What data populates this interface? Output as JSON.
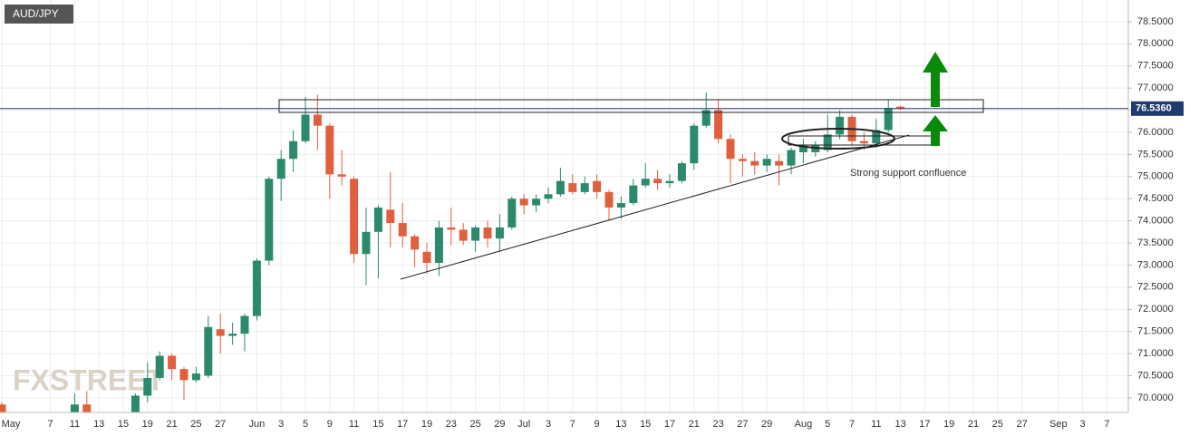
{
  "chart_data": {
    "type": "candlestick",
    "title": "AUD/JPY",
    "categories": [
      "May",
      null,
      null,
      null,
      "7",
      null,
      "11",
      null,
      "13",
      null,
      "15",
      null,
      "19",
      null,
      "21",
      null,
      "25",
      null,
      "27",
      null,
      null,
      "Jun",
      null,
      "3",
      null,
      "5",
      null,
      "9",
      null,
      "11",
      null,
      "15",
      null,
      "17",
      null,
      "19",
      null,
      "23",
      null,
      "25",
      null,
      "29",
      null,
      "Jul",
      null,
      "3",
      null,
      "7",
      null,
      "9",
      null,
      "13",
      null,
      "15",
      null,
      "17",
      null,
      "21",
      null,
      "23",
      null,
      "27",
      null,
      "29",
      null,
      null,
      "Aug",
      null,
      "5",
      null,
      "7",
      null,
      "11",
      null,
      "13",
      null,
      "17",
      null,
      "19",
      null,
      "21",
      null,
      "25",
      null,
      "27",
      null,
      null,
      "Sep",
      null,
      "3",
      null,
      "7"
    ],
    "open": [
      69.85,
      null,
      null,
      null,
      null,
      null,
      69.65,
      69.85,
      null,
      null,
      null,
      69.6,
      70.05,
      70.45,
      70.95,
      70.65,
      70.4,
      70.5,
      71.55,
      71.4,
      71.45,
      71.85,
      73.1,
      74.95,
      75.4,
      75.8,
      76.4,
      76.15,
      75.05,
      74.95,
      73.25,
      73.75,
      74.25,
      73.95,
      73.65,
      73.3,
      73.05,
      73.85,
      73.8,
      73.55,
      73.85,
      73.6,
      73.85,
      74.5,
      74.35,
      74.5,
      74.6,
      74.85,
      74.65,
      74.9,
      74.65,
      74.3,
      74.4,
      74.8,
      74.95,
      74.85,
      74.9,
      75.3,
      76.15,
      76.5,
      75.85,
      75.4,
      75.35,
      75.25,
      75.35,
      75.25,
      75.55,
      75.55,
      75.6,
      75.95,
      76.35,
      75.8,
      75.75,
      76.05,
      76.58,
      null,
      null,
      null,
      null,
      null,
      null,
      null,
      null,
      null,
      null,
      null,
      null,
      null,
      null,
      null,
      null,
      null
    ],
    "high": [
      69.9,
      null,
      null,
      null,
      null,
      null,
      70.1,
      70.15,
      null,
      null,
      null,
      70.1,
      70.8,
      71.05,
      71.0,
      70.7,
      70.7,
      71.85,
      71.9,
      71.7,
      71.9,
      73.15,
      75.0,
      75.6,
      76.05,
      76.8,
      76.85,
      76.2,
      75.6,
      75.0,
      74.3,
      74.35,
      75.1,
      74.4,
      73.7,
      73.5,
      74.0,
      74.3,
      73.95,
      73.9,
      74.0,
      74.15,
      74.55,
      74.6,
      74.6,
      74.75,
      75.2,
      75.05,
      75.0,
      75.05,
      74.7,
      74.55,
      74.95,
      75.3,
      75.15,
      75.05,
      75.35,
      76.2,
      76.9,
      76.75,
      75.95,
      75.5,
      75.55,
      75.5,
      75.5,
      75.65,
      75.85,
      75.8,
      76.4,
      76.5,
      76.4,
      76.0,
      76.3,
      76.75,
      76.6,
      null,
      null,
      null,
      null,
      null,
      null,
      null,
      null,
      null,
      null,
      null,
      null,
      null,
      null,
      null,
      null,
      null
    ],
    "low": [
      69.55,
      null,
      null,
      null,
      null,
      null,
      69.6,
      69.55,
      null,
      null,
      null,
      69.55,
      69.9,
      70.4,
      70.4,
      69.95,
      70.35,
      70.45,
      71.0,
      71.2,
      71.05,
      71.75,
      73.0,
      74.45,
      75.1,
      75.75,
      75.6,
      74.5,
      74.8,
      73.05,
      72.55,
      72.7,
      73.4,
      73.4,
      72.95,
      72.8,
      72.75,
      73.45,
      73.45,
      73.3,
      73.4,
      73.3,
      73.8,
      74.15,
      74.2,
      74.4,
      74.55,
      74.6,
      74.6,
      74.5,
      74.0,
      74.05,
      74.35,
      74.75,
      74.7,
      74.75,
      74.85,
      75.15,
      76.1,
      75.75,
      74.85,
      75.0,
      75.05,
      75.1,
      74.8,
      75.05,
      75.3,
      75.45,
      75.55,
      75.85,
      75.7,
      75.6,
      75.65,
      76.0,
      76.5,
      null,
      null,
      null,
      null,
      null,
      null,
      null,
      null,
      null,
      null,
      null,
      null,
      null,
      null,
      null,
      null,
      null
    ],
    "close": [
      69.6,
      null,
      null,
      null,
      null,
      null,
      69.85,
      69.6,
      null,
      null,
      null,
      70.05,
      70.45,
      70.95,
      70.65,
      70.4,
      70.55,
      71.6,
      71.4,
      71.45,
      71.85,
      73.1,
      74.95,
      75.4,
      75.8,
      76.4,
      76.15,
      75.05,
      75.0,
      73.25,
      73.75,
      74.3,
      73.95,
      73.65,
      73.35,
      73.05,
      73.85,
      73.8,
      73.55,
      73.85,
      73.6,
      73.85,
      74.5,
      74.35,
      74.5,
      74.6,
      74.9,
      74.65,
      74.85,
      74.65,
      74.3,
      74.4,
      74.8,
      74.95,
      74.85,
      74.9,
      75.3,
      76.15,
      76.5,
      75.85,
      75.4,
      75.35,
      75.25,
      75.4,
      75.25,
      75.6,
      75.7,
      75.7,
      75.95,
      76.35,
      75.8,
      75.75,
      76.05,
      76.55,
      76.53,
      null,
      null,
      null,
      null,
      null,
      null,
      null,
      null,
      null,
      null,
      null,
      null,
      null,
      null,
      null,
      null,
      null
    ],
    "up_color": "#2b8a6e",
    "down_color": "#e0603e",
    "ylim": [
      69.67,
      78.99
    ],
    "yticks": [
      {
        "value": 70,
        "label": "70.0000"
      },
      {
        "value": 70.5,
        "label": "70.5000"
      },
      {
        "value": 71,
        "label": "71.0000"
      },
      {
        "value": 71.5,
        "label": "71.5000"
      },
      {
        "value": 72,
        "label": "72.0000"
      },
      {
        "value": 72.5,
        "label": "72.5000"
      },
      {
        "value": 73,
        "label": "73.0000"
      },
      {
        "value": 73.5,
        "label": "73.5000"
      },
      {
        "value": 74,
        "label": "74.0000"
      },
      {
        "value": 74.5,
        "label": "74.5000"
      },
      {
        "value": 75,
        "label": "75.0000"
      },
      {
        "value": 75.5,
        "label": "75.5000"
      },
      {
        "value": 76,
        "label": "76.0000"
      },
      {
        "value": 76.5,
        "label": "76.5000"
      },
      {
        "value": 77,
        "label": "77.0000"
      },
      {
        "value": 77.5,
        "label": "77.5000"
      },
      {
        "value": 78,
        "label": "78.0000"
      },
      {
        "value": 78.5,
        "label": "78.5000"
      }
    ],
    "last_price": {
      "value": 76.536,
      "label": "76.5360"
    },
    "grid": true,
    "annotation": "Strong support confluence",
    "watermark": "FXSTREET"
  }
}
